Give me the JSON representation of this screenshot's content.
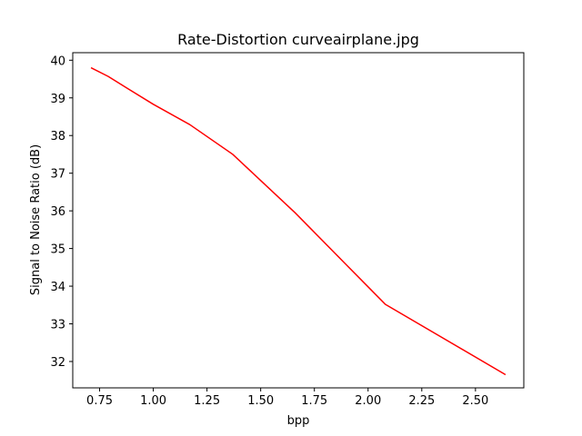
{
  "chart_data": {
    "type": "line",
    "title": "Rate-Distortion curveairplane.jpg",
    "xlabel": "bpp",
    "ylabel": "Signal to Noise Ratio (dB)",
    "xlim": [
      0.625,
      2.725
    ],
    "ylim": [
      31.3,
      40.2
    ],
    "xticks": [
      0.75,
      1.0,
      1.25,
      1.5,
      1.75,
      2.0,
      2.25,
      2.5
    ],
    "xtick_labels": [
      "0.75",
      "1.00",
      "1.25",
      "1.50",
      "1.75",
      "2.00",
      "2.25",
      "2.50"
    ],
    "yticks": [
      32,
      33,
      34,
      35,
      36,
      37,
      38,
      39,
      40
    ],
    "ytick_labels": [
      "32",
      "33",
      "34",
      "35",
      "36",
      "37",
      "38",
      "39",
      "40"
    ],
    "grid": false,
    "legend": "none",
    "series": [
      {
        "color": "#ff0000",
        "x": [
          0.71,
          0.79,
          0.88,
          1.0,
          1.17,
          1.37,
          1.66,
          2.08,
          2.64
        ],
        "y": [
          39.8,
          39.57,
          39.25,
          38.83,
          38.29,
          37.5,
          35.95,
          33.52,
          31.65
        ]
      }
    ]
  }
}
